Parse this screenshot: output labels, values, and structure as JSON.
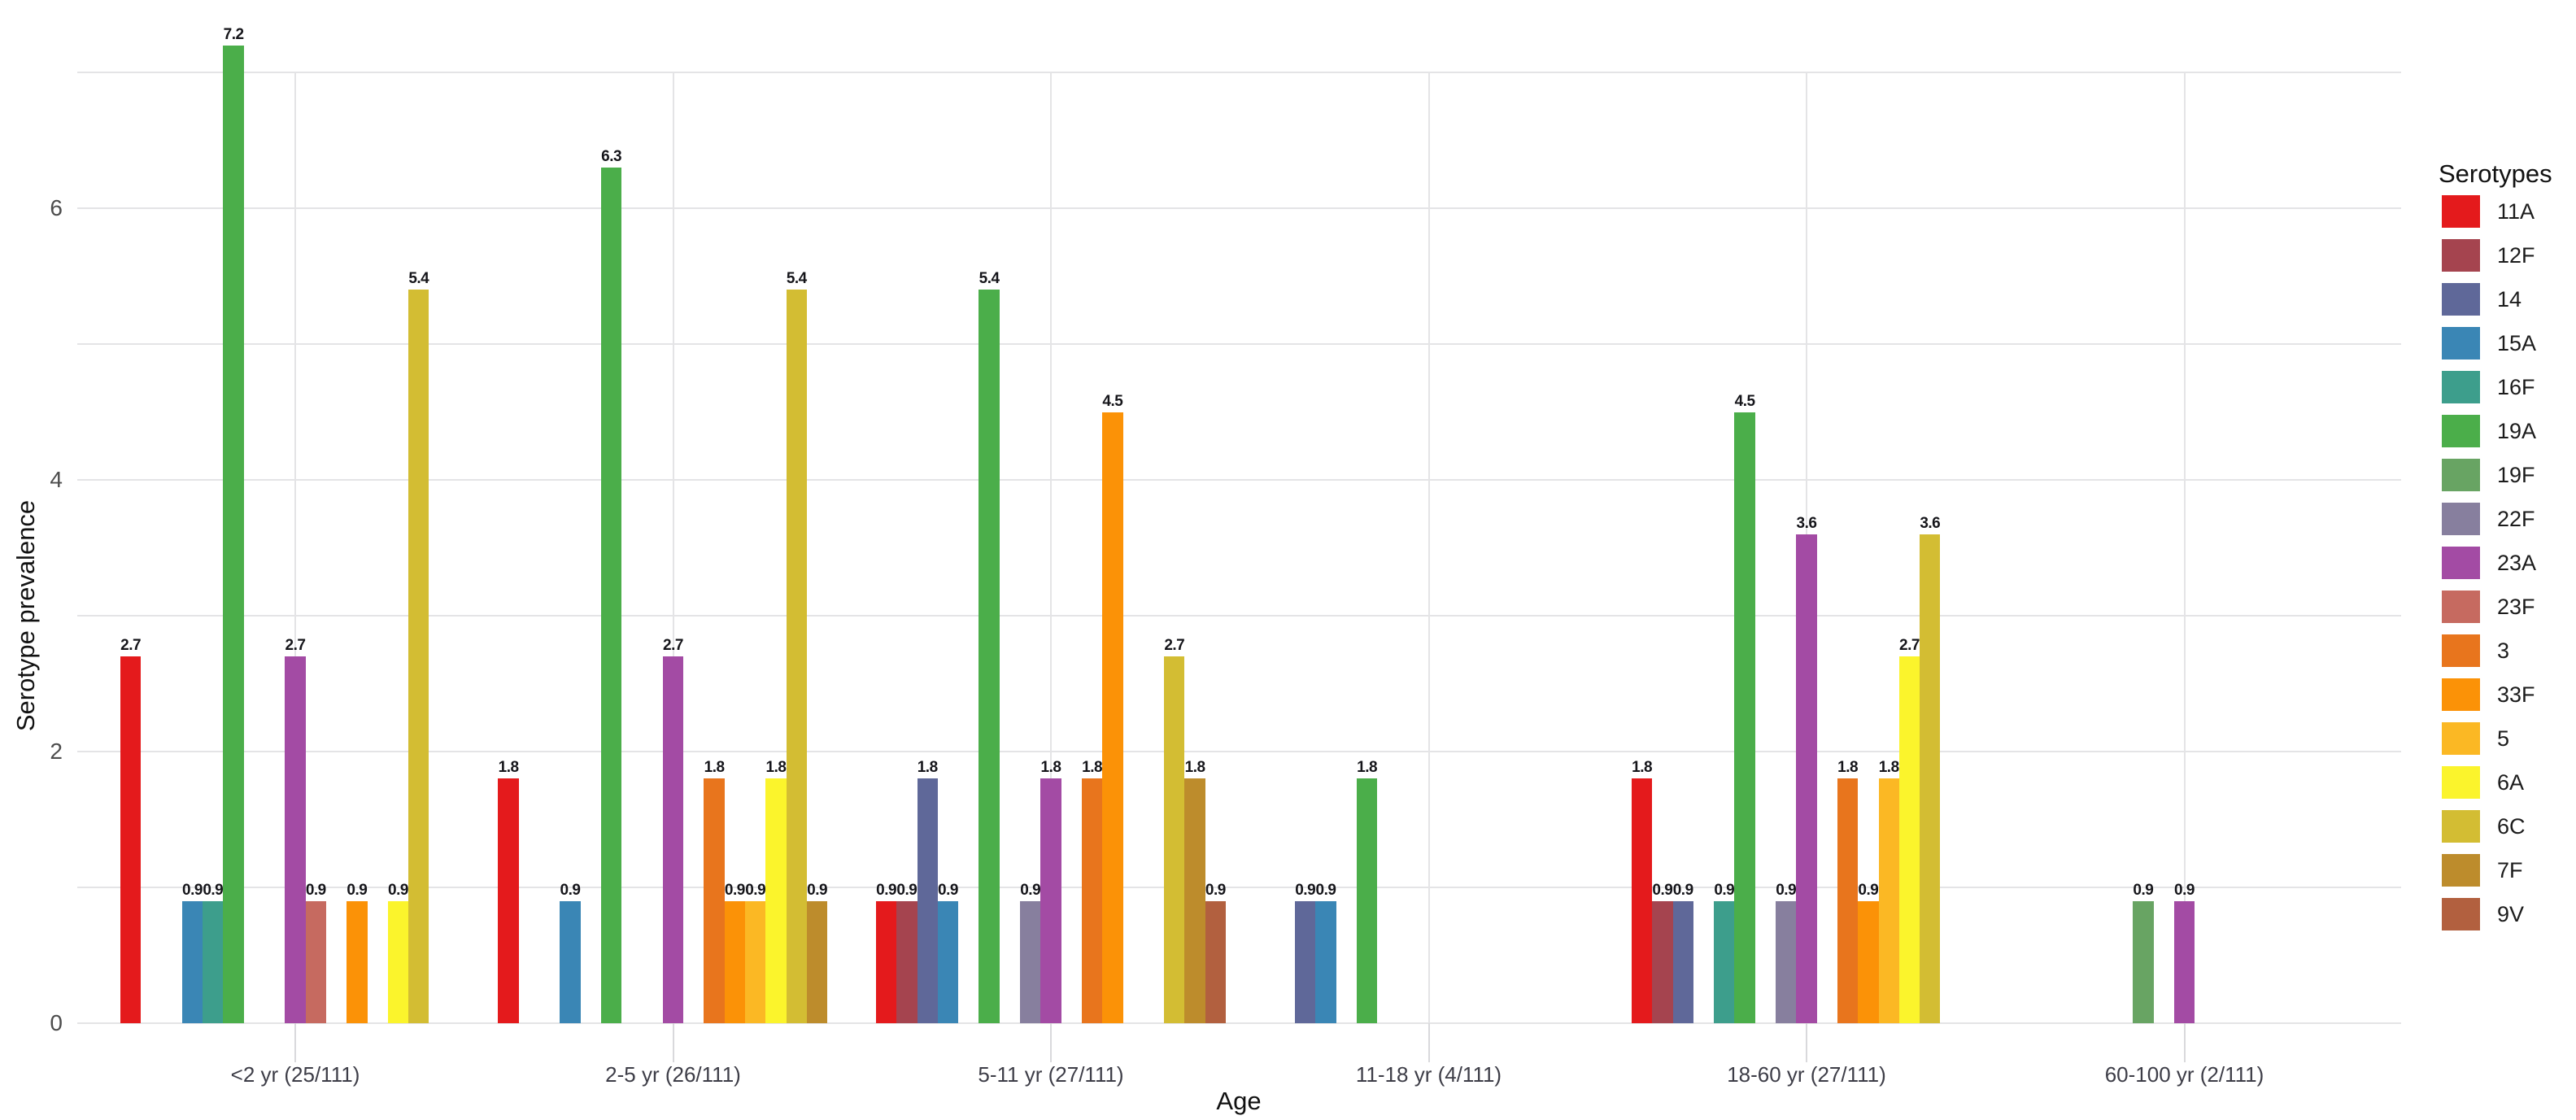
{
  "chart_data": {
    "type": "bar",
    "title": "",
    "xlabel": "Age",
    "ylabel": "Serotype prevalence",
    "legend_title": "Serotypes",
    "legend_position": "right",
    "grid": true,
    "ylim": [
      0,
      7.5
    ],
    "y_major_tick_labels": [
      "0",
      "2",
      "4",
      "6"
    ],
    "y_major_tick_values": [
      0,
      2,
      4,
      6
    ],
    "y_gridline_values": [
      0,
      1,
      2,
      3,
      4,
      5,
      6,
      7
    ],
    "value_label_format": "one-decimal",
    "serotypes": [
      {
        "name": "11A",
        "color": "#e41a1c"
      },
      {
        "name": "12F",
        "color": "#a5444f"
      },
      {
        "name": "14",
        "color": "#5f6899"
      },
      {
        "name": "15A",
        "color": "#3a86b5"
      },
      {
        "name": "16F",
        "color": "#3d9e8c"
      },
      {
        "name": "19A",
        "color": "#4bae4a"
      },
      {
        "name": "19F",
        "color": "#68a463"
      },
      {
        "name": "22F",
        "color": "#877f9e"
      },
      {
        "name": "23A",
        "color": "#a34ba4"
      },
      {
        "name": "23F",
        "color": "#c66a60"
      },
      {
        "name": "3",
        "color": "#e8751d"
      },
      {
        "name": "33F",
        "color": "#fb9207"
      },
      {
        "name": "5",
        "color": "#fbb824"
      },
      {
        "name": "6A",
        "color": "#fbf42c"
      },
      {
        "name": "6C",
        "color": "#d3bd33"
      },
      {
        "name": "7F",
        "color": "#bd8c2c"
      },
      {
        "name": "9V",
        "color": "#b2603f"
      }
    ],
    "categories": [
      "<2 yr (25/111)",
      "2-5 yr (26/111)",
      "5-11 yr (27/111)",
      "11-18 yr (4/111)",
      "18-60 yr (27/111)",
      "60-100 yr (2/111)"
    ],
    "groups": [
      {
        "label": "<2 yr (25/111)",
        "values": {
          "11A": 2.7,
          "15A": 0.9,
          "16F": 0.9,
          "19A": 7.2,
          "23A": 2.7,
          "23F": 0.9,
          "33F": 0.9,
          "6A": 0.9,
          "6C": 5.4
        }
      },
      {
        "label": "2-5 yr (26/111)",
        "values": {
          "11A": 1.8,
          "15A": 0.9,
          "19A": 6.3,
          "23A": 2.7,
          "3": 1.8,
          "33F": 0.9,
          "5": 0.9,
          "6A": 1.8,
          "6C": 5.4,
          "7F": 0.9
        }
      },
      {
        "label": "5-11 yr (27/111)",
        "values": {
          "11A": 0.9,
          "12F": 0.9,
          "14": 1.8,
          "15A": 0.9,
          "19A": 5.4,
          "22F": 0.9,
          "23A": 1.8,
          "3": 1.8,
          "33F": 4.5,
          "6C": 2.7,
          "7F": 1.8,
          "9V": 0.9
        }
      },
      {
        "label": "11-18 yr (4/111)",
        "values": {
          "14": 0.9,
          "15A": 0.9,
          "19A": 1.8
        }
      },
      {
        "label": "18-60 yr (27/111)",
        "values": {
          "11A": 1.8,
          "12F": 0.9,
          "14": 0.9,
          "16F": 0.9,
          "19A": 4.5,
          "22F": 0.9,
          "23A": 3.6,
          "3": 1.8,
          "33F": 0.9,
          "5": 1.8,
          "6A": 2.7,
          "6C": 3.6
        }
      },
      {
        "label": "60-100 yr (2/111)",
        "values": {
          "19F": 0.9,
          "23A": 0.9
        }
      }
    ]
  }
}
